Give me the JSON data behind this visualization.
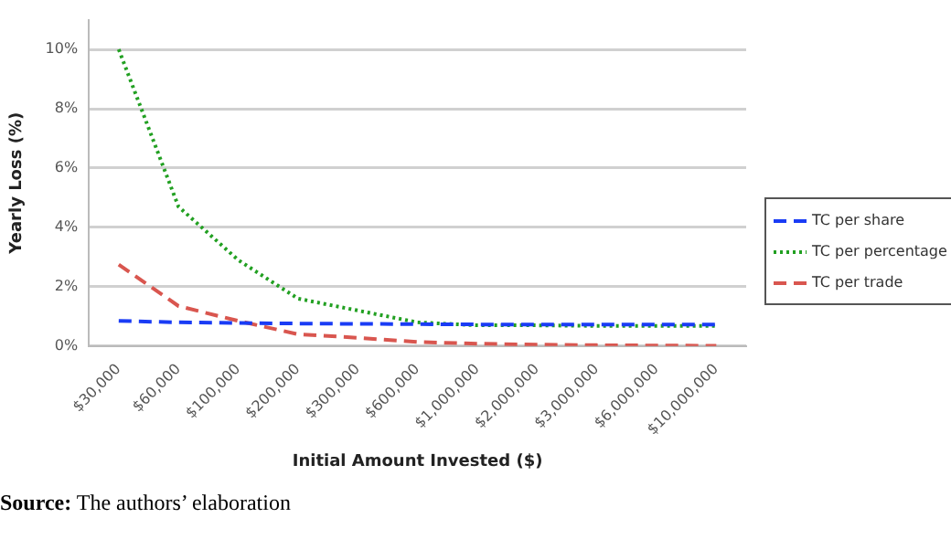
{
  "chart_data": {
    "type": "line",
    "xlabel": "Initial Amount Invested ($)",
    "ylabel": "Yearly Loss (%)",
    "categories": [
      "$30,000",
      "$60,000",
      "$100,000",
      "$200,000",
      "$300,000",
      "$600,000",
      "$1,000,000",
      "$2,000,000",
      "$3,000,000",
      "$6,000,000",
      "$10,000,000"
    ],
    "series": [
      {
        "name": "TC per share",
        "color": "#1a3cf5",
        "line_style": "dashed",
        "values": [
          0.85,
          0.8,
          0.78,
          0.76,
          0.75,
          0.74,
          0.73,
          0.73,
          0.73,
          0.73,
          0.73
        ]
      },
      {
        "name": "TC per percentage",
        "color": "#22a022",
        "line_style": "dotted",
        "values": [
          10,
          4.7,
          2.9,
          1.6,
          1.2,
          0.8,
          0.7,
          0.7,
          0.68,
          0.68,
          0.68
        ]
      },
      {
        "name": "TC per trade",
        "color": "#d9564f",
        "line_style": "dashed",
        "values": [
          2.75,
          1.35,
          0.85,
          0.4,
          0.28,
          0.14,
          0.08,
          0.05,
          0.03,
          0.02,
          0.01
        ]
      }
    ],
    "ylim": [
      0,
      11
    ],
    "yticks": [
      {
        "value": 0,
        "label": "0%"
      },
      {
        "value": 2,
        "label": "2%"
      },
      {
        "value": 4,
        "label": "4%"
      },
      {
        "value": 6,
        "label": "6%"
      },
      {
        "value": 8,
        "label": "8%"
      },
      {
        "value": 10,
        "label": "10%"
      }
    ],
    "grid": "y",
    "legend": "right",
    "marker": "none",
    "annotations": [
      "Source: The authors’ elaboration"
    ]
  }
}
